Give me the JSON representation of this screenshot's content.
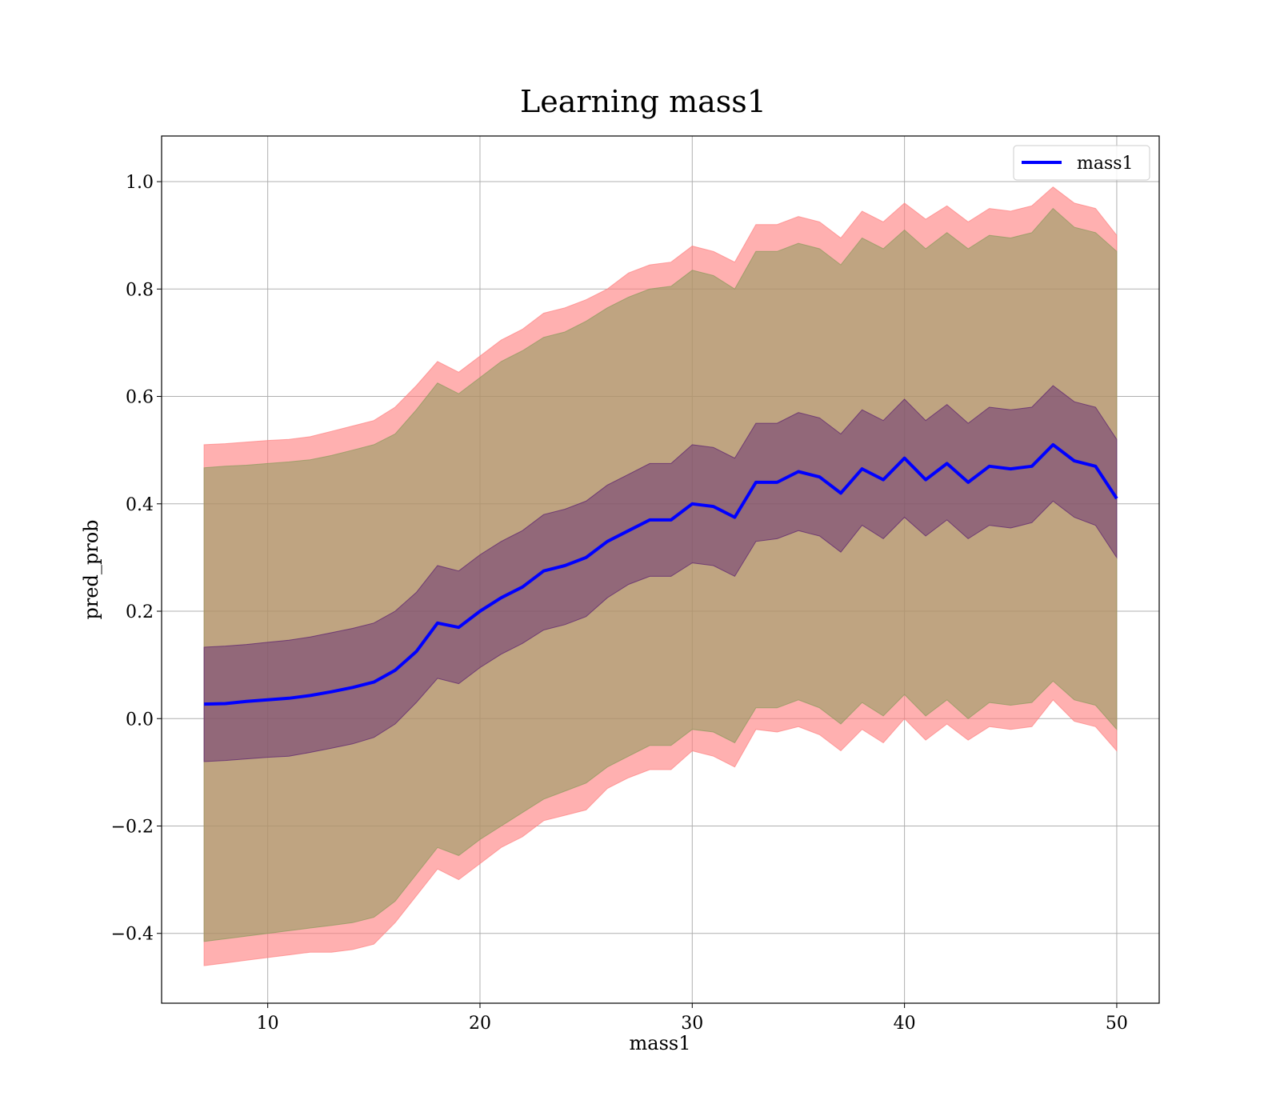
{
  "chart_data": {
    "type": "line",
    "title": "Learning mass1",
    "xlabel": "mass1",
    "ylabel": "pred_prob",
    "xlim": [
      5,
      52
    ],
    "ylim": [
      -0.53,
      1.085
    ],
    "xticks": [
      10,
      20,
      30,
      40,
      50
    ],
    "yticks": [
      -0.4,
      -0.2,
      0.0,
      0.2,
      0.4,
      0.6,
      0.8,
      1.0
    ],
    "xtick_labels": [
      "10",
      "20",
      "30",
      "40",
      "50"
    ],
    "ytick_labels": [
      "−0.4",
      "−0.2",
      "0.0",
      "0.2",
      "0.4",
      "0.6",
      "0.8",
      "1.0"
    ],
    "grid": true,
    "legend": {
      "placement": "top-right",
      "entries": [
        "mass1"
      ]
    },
    "colors": {
      "line": "#0000ff",
      "outer_band": "#ff8080",
      "middle_band": "#8a9a5b",
      "inner_band": "#5a1f6f"
    },
    "x": [
      7,
      8,
      9,
      10,
      11,
      12,
      13,
      14,
      15,
      16,
      17,
      18,
      19,
      20,
      21,
      22,
      23,
      24,
      25,
      26,
      27,
      28,
      29,
      30,
      31,
      32,
      33,
      34,
      35,
      36,
      37,
      38,
      39,
      40,
      41,
      42,
      43,
      44,
      45,
      46,
      47,
      48,
      49,
      50
    ],
    "series": [
      {
        "name": "mass1",
        "values": [
          0.027,
          0.028,
          0.032,
          0.035,
          0.038,
          0.043,
          0.05,
          0.058,
          0.068,
          0.09,
          0.125,
          0.178,
          0.17,
          0.2,
          0.225,
          0.245,
          0.275,
          0.285,
          0.3,
          0.33,
          0.35,
          0.37,
          0.37,
          0.4,
          0.395,
          0.375,
          0.44,
          0.44,
          0.46,
          0.45,
          0.42,
          0.465,
          0.445,
          0.485,
          0.445,
          0.475,
          0.44,
          0.47,
          0.465,
          0.47,
          0.51,
          0.48,
          0.47,
          0.41
        ]
      }
    ],
    "bands": [
      {
        "lower": [
          -0.46,
          -0.455,
          -0.45,
          -0.445,
          -0.44,
          -0.435,
          -0.435,
          -0.43,
          -0.42,
          -0.38,
          -0.33,
          -0.28,
          -0.3,
          -0.27,
          -0.24,
          -0.22,
          -0.19,
          -0.18,
          -0.17,
          -0.13,
          -0.11,
          -0.095,
          -0.095,
          -0.06,
          -0.07,
          -0.09,
          -0.02,
          -0.025,
          -0.015,
          -0.03,
          -0.06,
          -0.02,
          -0.045,
          0.0,
          -0.04,
          -0.01,
          -0.04,
          -0.015,
          -0.02,
          -0.015,
          0.035,
          -0.005,
          -0.015,
          -0.06
        ],
        "upper": [
          0.51,
          0.512,
          0.515,
          0.518,
          0.52,
          0.525,
          0.535,
          0.545,
          0.555,
          0.58,
          0.62,
          0.665,
          0.645,
          0.675,
          0.705,
          0.725,
          0.755,
          0.765,
          0.78,
          0.8,
          0.83,
          0.845,
          0.85,
          0.88,
          0.87,
          0.85,
          0.92,
          0.92,
          0.935,
          0.925,
          0.895,
          0.945,
          0.925,
          0.96,
          0.93,
          0.955,
          0.925,
          0.95,
          0.945,
          0.955,
          0.99,
          0.96,
          0.95,
          0.9
        ]
      },
      {
        "lower": [
          -0.415,
          -0.41,
          -0.405,
          -0.4,
          -0.395,
          -0.39,
          -0.385,
          -0.38,
          -0.37,
          -0.34,
          -0.29,
          -0.24,
          -0.255,
          -0.225,
          -0.2,
          -0.175,
          -0.15,
          -0.135,
          -0.12,
          -0.09,
          -0.07,
          -0.05,
          -0.05,
          -0.02,
          -0.025,
          -0.045,
          0.02,
          0.02,
          0.035,
          0.02,
          -0.01,
          0.03,
          0.005,
          0.045,
          0.005,
          0.035,
          0.0,
          0.03,
          0.025,
          0.03,
          0.07,
          0.035,
          0.025,
          -0.02
        ],
        "upper": [
          0.467,
          0.47,
          0.472,
          0.475,
          0.478,
          0.482,
          0.49,
          0.5,
          0.51,
          0.53,
          0.575,
          0.625,
          0.605,
          0.635,
          0.665,
          0.685,
          0.71,
          0.72,
          0.74,
          0.765,
          0.785,
          0.8,
          0.805,
          0.835,
          0.825,
          0.8,
          0.87,
          0.87,
          0.885,
          0.875,
          0.845,
          0.895,
          0.875,
          0.91,
          0.875,
          0.905,
          0.875,
          0.9,
          0.895,
          0.905,
          0.95,
          0.915,
          0.905,
          0.87
        ]
      },
      {
        "lower": [
          -0.08,
          -0.078,
          -0.075,
          -0.072,
          -0.07,
          -0.063,
          -0.055,
          -0.047,
          -0.035,
          -0.01,
          0.03,
          0.075,
          0.065,
          0.095,
          0.12,
          0.14,
          0.165,
          0.175,
          0.19,
          0.225,
          0.25,
          0.265,
          0.265,
          0.29,
          0.285,
          0.265,
          0.33,
          0.335,
          0.35,
          0.34,
          0.31,
          0.36,
          0.335,
          0.375,
          0.34,
          0.37,
          0.335,
          0.36,
          0.355,
          0.365,
          0.405,
          0.375,
          0.36,
          0.3
        ],
        "upper": [
          0.133,
          0.135,
          0.138,
          0.142,
          0.146,
          0.152,
          0.16,
          0.168,
          0.178,
          0.2,
          0.235,
          0.285,
          0.275,
          0.305,
          0.33,
          0.35,
          0.38,
          0.39,
          0.405,
          0.435,
          0.455,
          0.475,
          0.475,
          0.51,
          0.505,
          0.485,
          0.55,
          0.55,
          0.57,
          0.56,
          0.53,
          0.575,
          0.555,
          0.595,
          0.555,
          0.585,
          0.55,
          0.58,
          0.575,
          0.58,
          0.62,
          0.59,
          0.58,
          0.52
        ]
      }
    ]
  }
}
